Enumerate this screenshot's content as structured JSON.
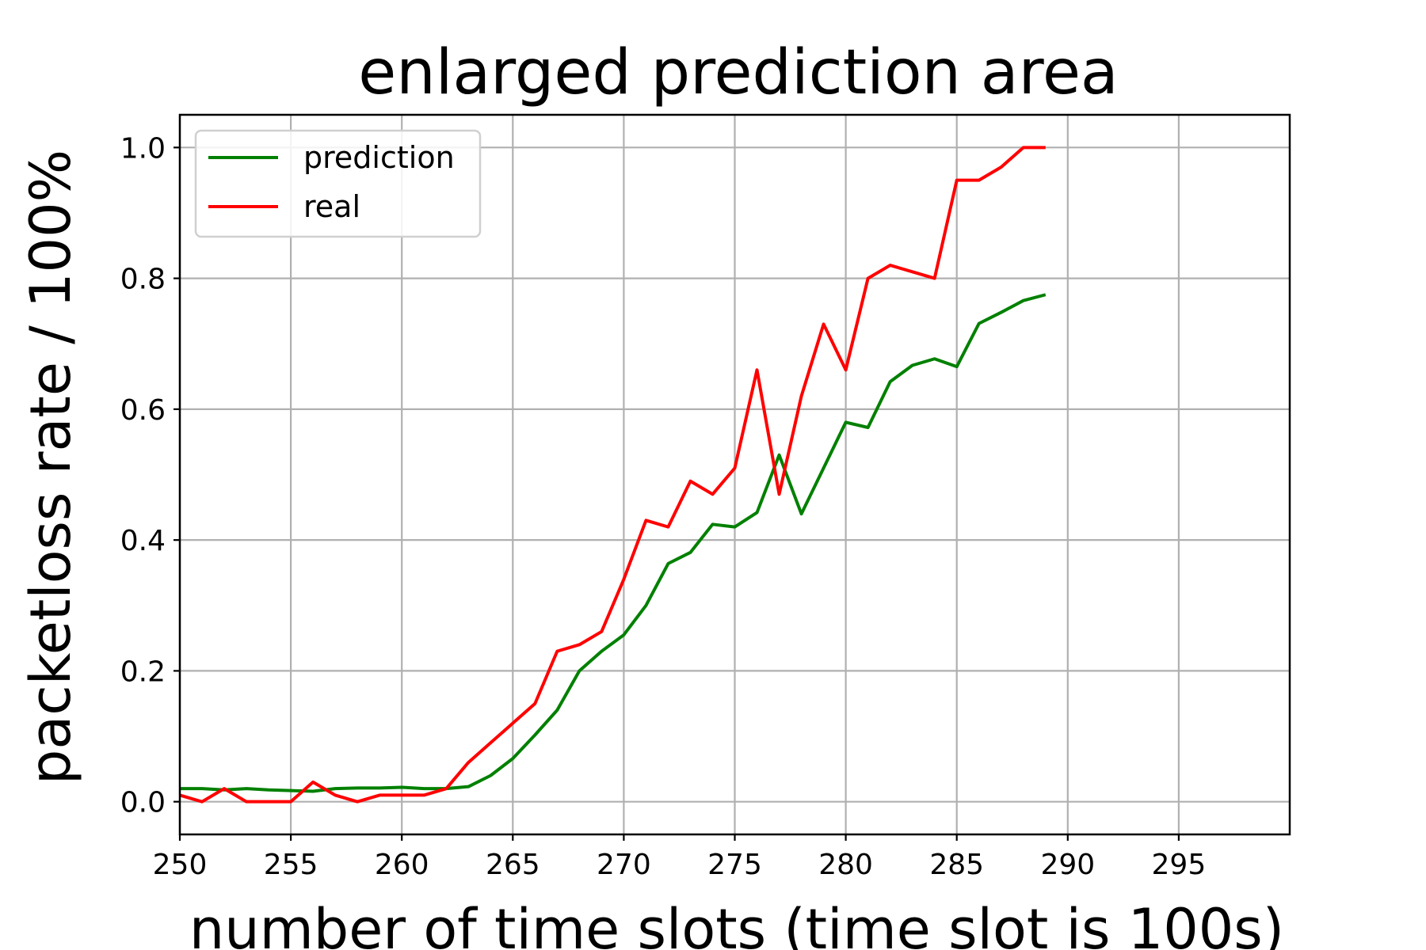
{
  "chart_data": {
    "type": "line",
    "title": "enlarged prediction area",
    "xlabel": "number of time slots (time slot is 100s)",
    "ylabel": "packetloss rate / 100%",
    "xlim": [
      250,
      300
    ],
    "ylim": [
      -0.05,
      1.05
    ],
    "xticks": [
      250,
      255,
      260,
      265,
      270,
      275,
      280,
      285,
      290,
      295
    ],
    "yticks": [
      0.0,
      0.2,
      0.4,
      0.6,
      0.8,
      1.0
    ],
    "xtick_labels": [
      "250",
      "255",
      "260",
      "265",
      "270",
      "275",
      "280",
      "285",
      "290",
      "295"
    ],
    "ytick_labels": [
      "0.0",
      "0.2",
      "0.4",
      "0.6",
      "0.8",
      "1.0"
    ],
    "grid": true,
    "legend_position": "top-left",
    "x": [
      250,
      251,
      252,
      253,
      254,
      255,
      256,
      257,
      258,
      259,
      260,
      261,
      262,
      263,
      264,
      265,
      266,
      267,
      268,
      269,
      270,
      271,
      272,
      273,
      274,
      275,
      276,
      277,
      278,
      279,
      280,
      281,
      282,
      283,
      284,
      285,
      286,
      287,
      288,
      289
    ],
    "series": [
      {
        "name": "prediction",
        "color": "#008000",
        "values": [
          0.02,
          0.02,
          0.018,
          0.02,
          0.018,
          0.017,
          0.016,
          0.02,
          0.021,
          0.021,
          0.022,
          0.02,
          0.02,
          0.023,
          0.04,
          0.066,
          0.102,
          0.14,
          0.2,
          0.23,
          0.255,
          0.3,
          0.364,
          0.381,
          0.424,
          0.42,
          0.442,
          0.53,
          0.44,
          0.51,
          0.58,
          0.572,
          0.642,
          0.667,
          0.677,
          0.665,
          0.731,
          0.748,
          0.766,
          0.775
        ]
      },
      {
        "name": "real",
        "color": "#ff0000",
        "values": [
          0.01,
          0.0,
          0.02,
          0.0,
          0.0,
          0.0,
          0.03,
          0.01,
          0.0,
          0.01,
          0.01,
          0.01,
          0.02,
          0.06,
          0.09,
          0.12,
          0.15,
          0.23,
          0.24,
          0.26,
          0.34,
          0.43,
          0.42,
          0.49,
          0.47,
          0.51,
          0.66,
          0.47,
          0.62,
          0.73,
          0.66,
          0.8,
          0.82,
          0.81,
          0.8,
          0.95,
          0.95,
          0.97,
          1.0,
          1.0
        ]
      }
    ]
  }
}
